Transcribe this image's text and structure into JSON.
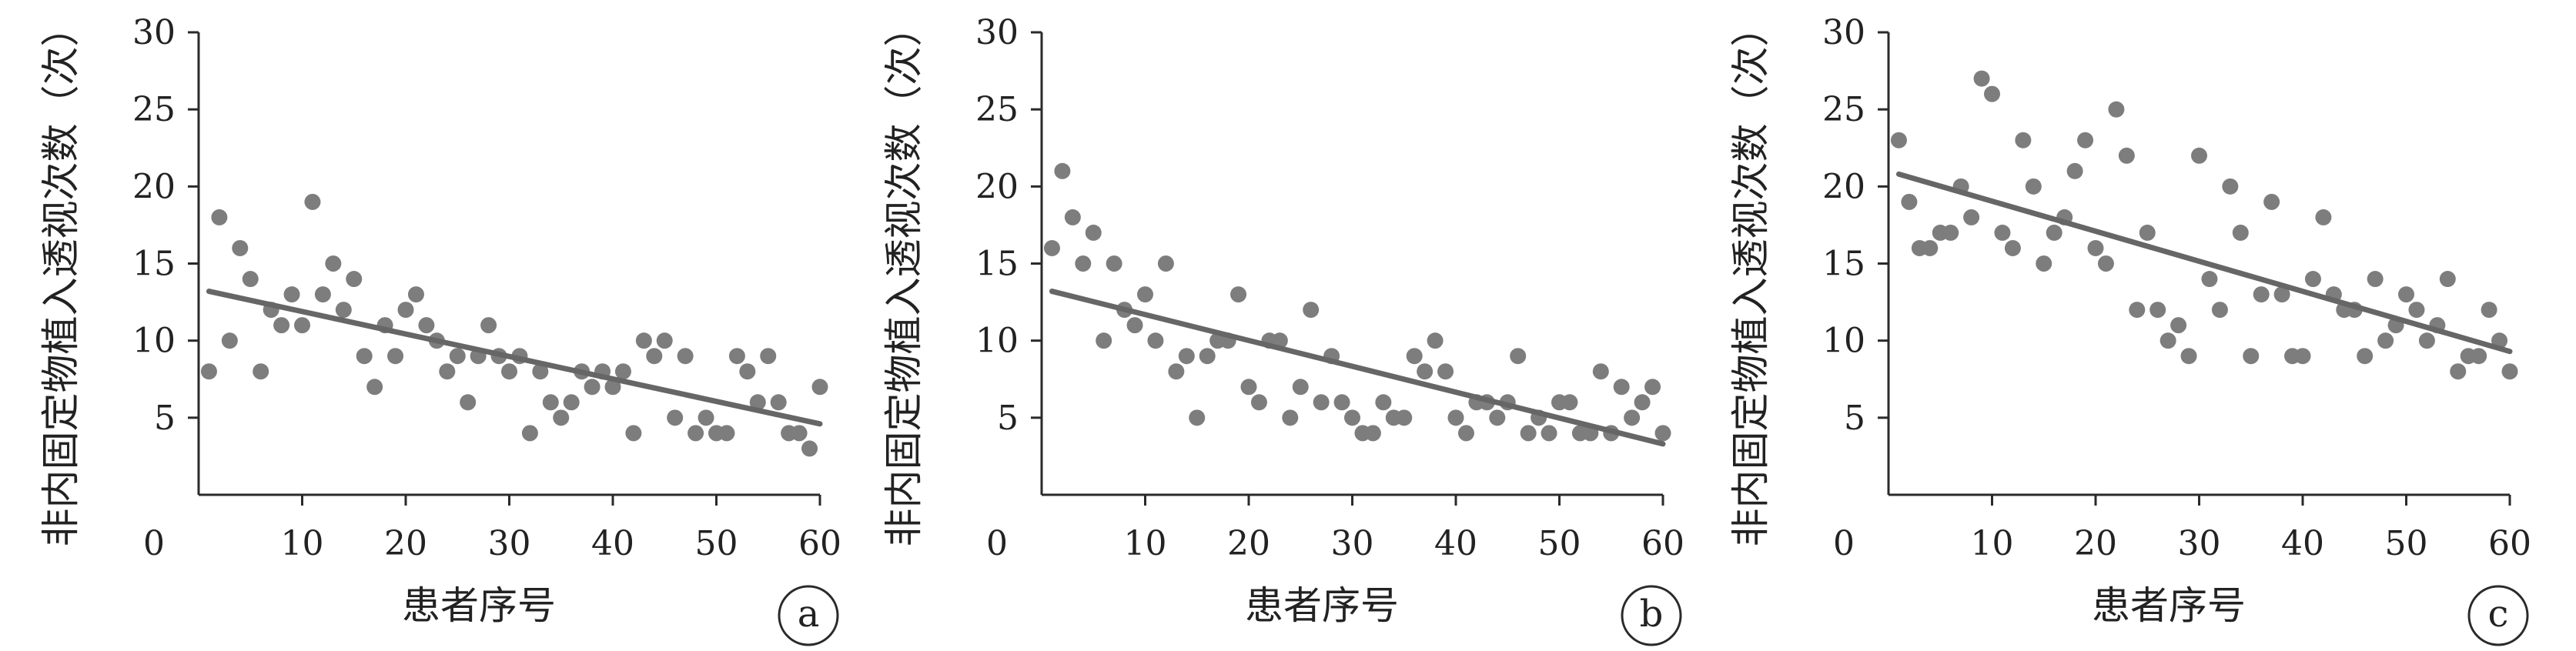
{
  "colors": {
    "points": "#7d7d7d",
    "trend": "#666666",
    "axes": "#2a2a2a",
    "text": "#222222"
  },
  "chart_data": [
    {
      "type": "scatter",
      "panel_label": "a",
      "xlabel": "患者序号",
      "ylabel": "非内固定物植入透视次数（次）",
      "xlim": [
        0,
        60
      ],
      "ylim": [
        0,
        30
      ],
      "x_ticks": [
        10,
        20,
        30,
        40,
        50,
        60
      ],
      "y_ticks": [
        5,
        10,
        15,
        20,
        25,
        30
      ],
      "origin_label": "0",
      "grid": false,
      "legend": "none",
      "x": [
        1,
        2,
        3,
        4,
        5,
        6,
        7,
        8,
        9,
        10,
        11,
        12,
        13,
        14,
        15,
        16,
        17,
        18,
        19,
        20,
        21,
        22,
        23,
        24,
        25,
        26,
        27,
        28,
        29,
        30,
        31,
        32,
        33,
        34,
        35,
        36,
        37,
        38,
        39,
        40,
        41,
        42,
        43,
        44,
        45,
        46,
        47,
        48,
        49,
        50,
        51,
        52,
        53,
        54,
        55,
        56,
        57,
        58,
        59,
        60
      ],
      "y": [
        8,
        18,
        10,
        16,
        14,
        8,
        12,
        11,
        13,
        11,
        19,
        13,
        15,
        12,
        14,
        9,
        7,
        11,
        9,
        12,
        13,
        11,
        10,
        8,
        9,
        6,
        9,
        11,
        9,
        8,
        9,
        4,
        8,
        6,
        5,
        6,
        8,
        7,
        8,
        7,
        8,
        4,
        10,
        9,
        10,
        5,
        9,
        4,
        5,
        4,
        4,
        9,
        8,
        6,
        9,
        6,
        4,
        4,
        3,
        7
      ],
      "trendline": {
        "x": [
          1,
          60
        ],
        "y": [
          13.2,
          4.6
        ]
      }
    },
    {
      "type": "scatter",
      "panel_label": "b",
      "xlabel": "患者序号",
      "ylabel": "非内固定物植入透视次数（次）",
      "xlim": [
        0,
        60
      ],
      "ylim": [
        0,
        30
      ],
      "x_ticks": [
        10,
        20,
        30,
        40,
        50,
        60
      ],
      "y_ticks": [
        5,
        10,
        15,
        20,
        25,
        30
      ],
      "origin_label": "0",
      "grid": false,
      "legend": "none",
      "x": [
        1,
        2,
        3,
        4,
        5,
        6,
        7,
        8,
        9,
        10,
        11,
        12,
        13,
        14,
        15,
        16,
        17,
        18,
        19,
        20,
        21,
        22,
        23,
        24,
        25,
        26,
        27,
        28,
        29,
        30,
        31,
        32,
        33,
        34,
        35,
        36,
        37,
        38,
        39,
        40,
        41,
        42,
        43,
        44,
        45,
        46,
        47,
        48,
        49,
        50,
        51,
        52,
        53,
        54,
        55,
        56,
        57,
        58,
        59,
        60
      ],
      "y": [
        16,
        21,
        18,
        15,
        17,
        10,
        15,
        12,
        11,
        13,
        10,
        15,
        8,
        9,
        5,
        9,
        10,
        10,
        13,
        7,
        6,
        10,
        10,
        5,
        7,
        12,
        6,
        9,
        6,
        5,
        4,
        4,
        6,
        5,
        5,
        9,
        8,
        10,
        8,
        5,
        4,
        6,
        6,
        5,
        6,
        9,
        4,
        5,
        4,
        6,
        6,
        4,
        4,
        8,
        4,
        7,
        5,
        6,
        7,
        4
      ],
      "trendline": {
        "x": [
          1,
          60
        ],
        "y": [
          13.2,
          3.3
        ]
      }
    },
    {
      "type": "scatter",
      "panel_label": "c",
      "xlabel": "患者序号",
      "ylabel": "非内固定物植入透视次数（次）",
      "xlim": [
        0,
        60
      ],
      "ylim": [
        0,
        30
      ],
      "x_ticks": [
        10,
        20,
        30,
        40,
        50,
        60
      ],
      "y_ticks": [
        5,
        10,
        15,
        20,
        25,
        30
      ],
      "origin_label": "0",
      "grid": false,
      "legend": "none",
      "x": [
        1,
        2,
        3,
        4,
        5,
        6,
        7,
        8,
        9,
        10,
        11,
        12,
        13,
        14,
        15,
        16,
        17,
        18,
        19,
        20,
        21,
        22,
        23,
        24,
        25,
        26,
        27,
        28,
        29,
        30,
        31,
        32,
        33,
        34,
        35,
        36,
        37,
        38,
        39,
        40,
        41,
        42,
        43,
        44,
        45,
        46,
        47,
        48,
        49,
        50,
        51,
        52,
        53,
        54,
        55,
        56,
        57,
        58,
        59,
        60
      ],
      "y": [
        23,
        19,
        16,
        16,
        17,
        17,
        20,
        18,
        27,
        26,
        17,
        16,
        23,
        20,
        15,
        17,
        18,
        21,
        23,
        16,
        15,
        25,
        22,
        12,
        17,
        12,
        10,
        11,
        9,
        22,
        14,
        12,
        20,
        17,
        9,
        13,
        19,
        13,
        9,
        9,
        14,
        18,
        13,
        12,
        12,
        9,
        14,
        10,
        11,
        13,
        12,
        10,
        11,
        14,
        8,
        9,
        9,
        12,
        10,
        8
      ],
      "trendline": {
        "x": [
          1,
          60
        ],
        "y": [
          20.8,
          9.3
        ]
      }
    }
  ]
}
